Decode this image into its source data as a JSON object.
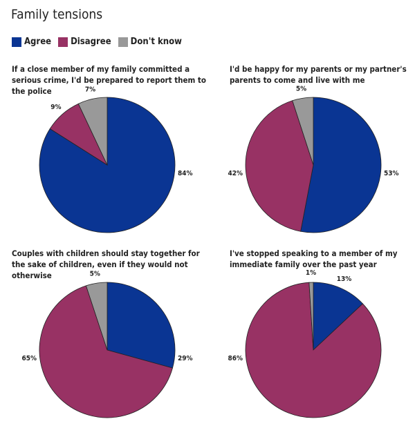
{
  "chart_data": [
    {
      "type": "pie",
      "title": "If a close member of my family committed a serious crime, I'd be prepared to report them to the police",
      "categories": [
        "Agree",
        "Disagree",
        "Don't know"
      ],
      "values": [
        84,
        9,
        7
      ],
      "labels": [
        "84%",
        "9%",
        "7%"
      ]
    },
    {
      "type": "pie",
      "title": "I'd be happy for my parents or my partner's parents to come and live with me",
      "categories": [
        "Agree",
        "Disagree",
        "Don't know"
      ],
      "values": [
        53,
        42,
        5
      ],
      "labels": [
        "53%",
        "42%",
        "5%"
      ]
    },
    {
      "type": "pie",
      "title": "Couples with children should stay together for the sake of children, even if they would not otherwise",
      "categories": [
        "Agree",
        "Disagree",
        "Don't know"
      ],
      "values": [
        29,
        65,
        5
      ],
      "labels": [
        "29%",
        "65%",
        "5%"
      ]
    },
    {
      "type": "pie",
      "title": "I've stopped speaking to a member of my immediate family over the past year",
      "categories": [
        "Agree",
        "Disagree",
        "Don't know"
      ],
      "values": [
        13,
        86,
        1
      ],
      "labels": [
        "13%",
        "86%",
        "1%"
      ]
    }
  ],
  "title": "Family tensions",
  "legend": [
    {
      "label": "Agree",
      "color": "#0a3593"
    },
    {
      "label": "Disagree",
      "color": "#983264"
    },
    {
      "label": "Don't know",
      "color": "#999999"
    }
  ]
}
